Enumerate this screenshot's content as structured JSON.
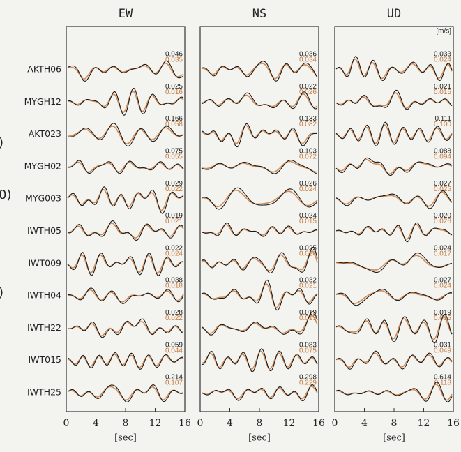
{
  "left_fragments": [
    ")",
    "0)",
    ")"
  ],
  "stations": [
    "AKTH06",
    "MYGH12",
    "AKT023",
    "MYGH02",
    "MYG003",
    "IWTH05",
    "IWT009",
    "IWTH04",
    "IWTH22",
    "IWT015",
    "IWTH25"
  ],
  "unit": "[m/s]",
  "xlim": [
    0,
    16
  ],
  "xticks": [
    0,
    4,
    8,
    12,
    16
  ],
  "xlabel": "[sec]",
  "panels": [
    {
      "title": "EW",
      "observed": [
        "0.046",
        "0.025",
        "0.166",
        "0.075",
        "0.029",
        "0.019",
        "0.022",
        "0.038",
        "0.028",
        "0.059",
        "0.214"
      ],
      "synthetic": [
        "0.035",
        "0.016",
        "0.058",
        "0.055",
        "0.022",
        "0.021",
        "0.024",
        "0.018",
        "0.022",
        "0.044",
        "0.107"
      ]
    },
    {
      "title": "NS",
      "observed": [
        "0.036",
        "0.022",
        "0.133",
        "0.103",
        "0.026",
        "0.024",
        "0.025",
        "0.032",
        "0.019",
        "0.083",
        "0.298"
      ],
      "synthetic": [
        "0.034",
        "0.026",
        "0.082",
        "0.072",
        "0.024",
        "0.015",
        "0.020",
        "0.021",
        "0.015",
        "0.075",
        "0.229"
      ]
    },
    {
      "title": "UD",
      "observed": [
        "0.033",
        "0.021",
        "0.111",
        "0.088",
        "0.027",
        "0.020",
        "0.024",
        "0.027",
        "0.019",
        "0.031",
        "0.614"
      ],
      "synthetic": [
        "0.024",
        "0.015",
        "0.100",
        "0.094",
        "0.025",
        "0.026",
        "0.017",
        "0.024",
        "0.015",
        "0.049",
        "0.118"
      ]
    }
  ]
}
